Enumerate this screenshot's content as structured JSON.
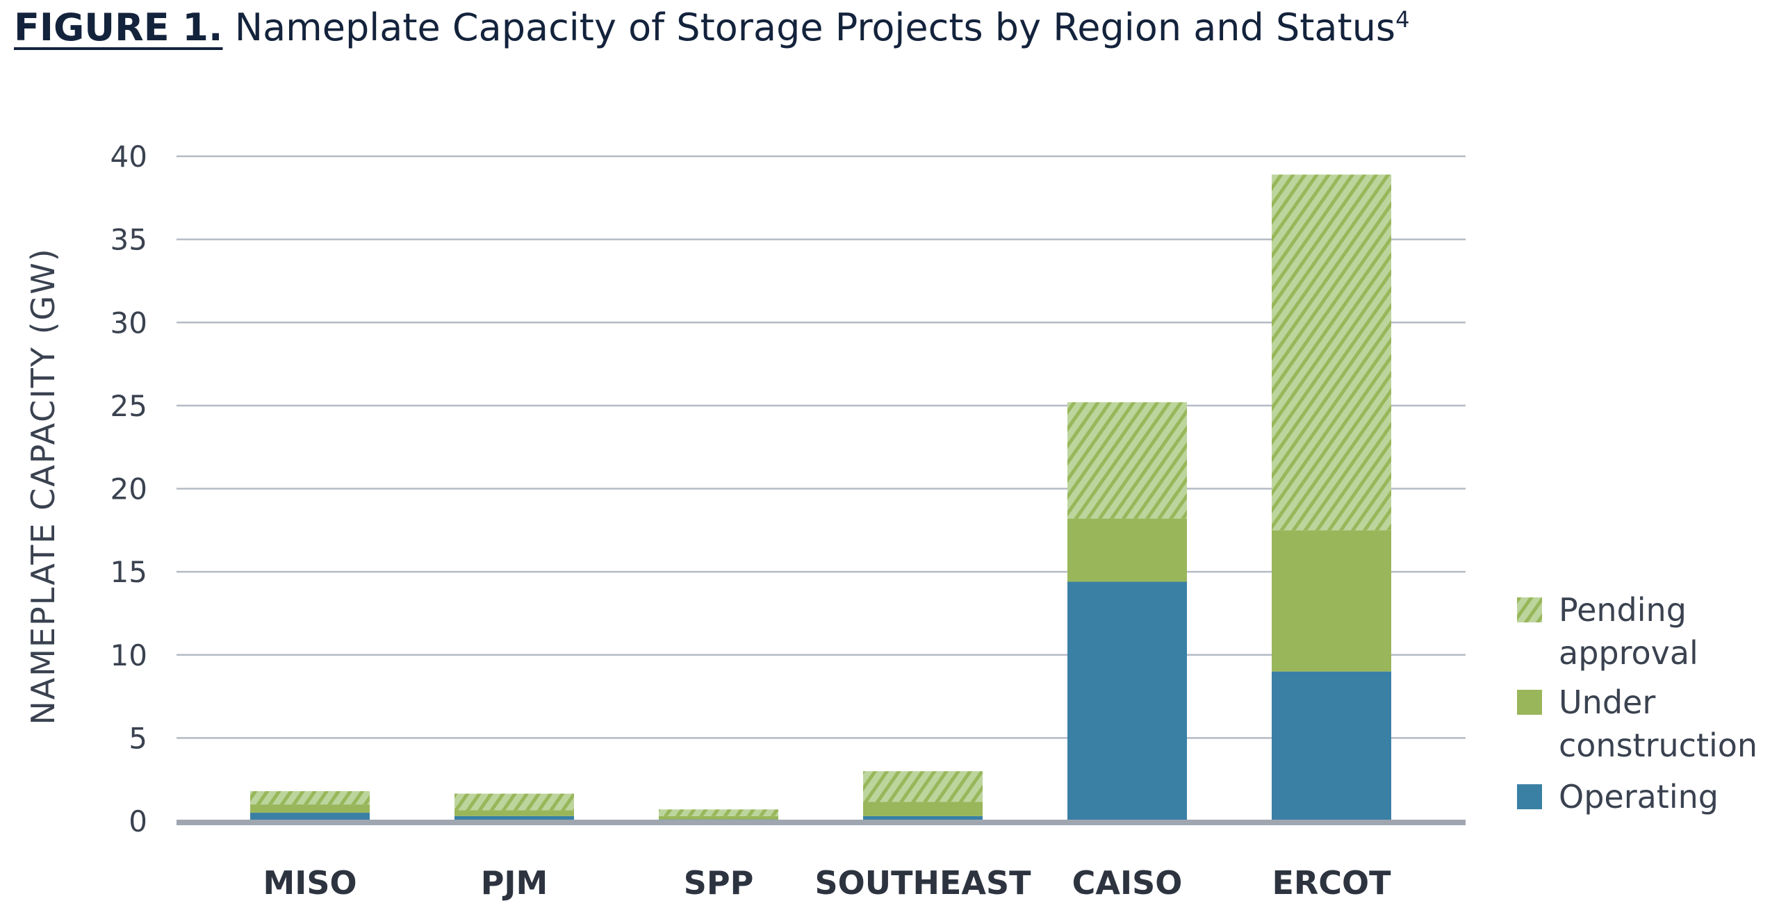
{
  "figure_label": "FIGURE 1.",
  "title": "Nameplate Capacity of Storage Projects by Region and Status",
  "footnote_marker": "4",
  "chart_data": {
    "type": "bar",
    "stacked": true,
    "title": "Nameplate Capacity of Storage Projects by Region and Status",
    "xlabel": "",
    "ylabel": "NAMEPLATE CAPACITY (GW)",
    "ylim": [
      0,
      40
    ],
    "yticks": [
      "0",
      "5",
      "10",
      "15",
      "20",
      "25",
      "30",
      "35",
      "40"
    ],
    "grid": true,
    "legend_position": "right",
    "categories": [
      "MISO",
      "PJM",
      "SPP",
      "SOUTHEAST",
      "CAISO",
      "ERCOT"
    ],
    "series": [
      {
        "name": "Operating",
        "legend_lines": [
          "Operating"
        ],
        "color": "#3a80a5",
        "pattern": "solid",
        "values": [
          0.5,
          0.3,
          0.1,
          0.3,
          14.4,
          9.0
        ]
      },
      {
        "name": "Under construction",
        "legend_lines": [
          "Under",
          "construction"
        ],
        "color": "#99b65a",
        "pattern": "solid",
        "values": [
          0.5,
          0.35,
          0.2,
          0.85,
          3.8,
          8.5
        ]
      },
      {
        "name": "Pending approval",
        "legend_lines": [
          "Pending",
          "approval"
        ],
        "color": "#b9d49a",
        "pattern": "hatched",
        "values": [
          0.8,
          1.0,
          0.4,
          1.85,
          7.0,
          21.4
        ]
      }
    ]
  }
}
